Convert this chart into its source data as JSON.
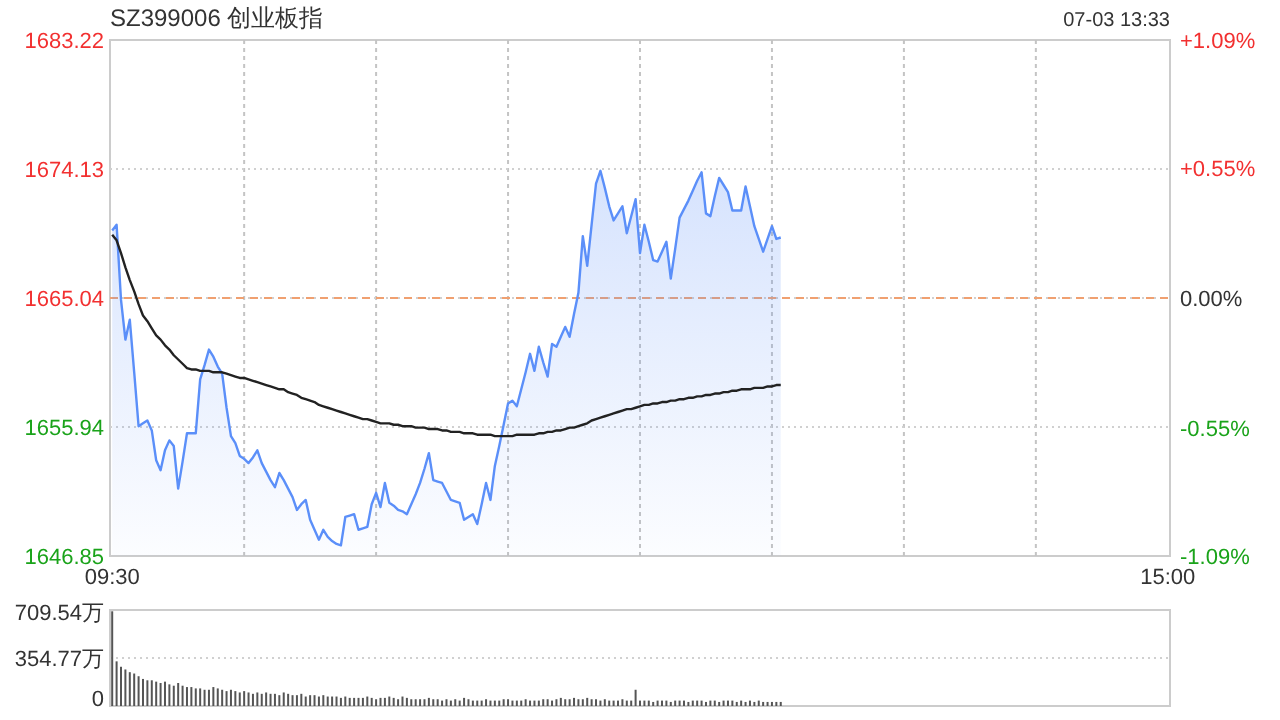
{
  "chart_data": [
    {
      "type": "line",
      "title": "SZ399006 创业板指",
      "annotations": [
        "07-03 13:33"
      ],
      "categories": [
        "09:30",
        null,
        null,
        null,
        null,
        null,
        null,
        null,
        null,
        null,
        null,
        null,
        null,
        null,
        null,
        null,
        null,
        null,
        null,
        null,
        null,
        null,
        null,
        null,
        null,
        null,
        null,
        null,
        null,
        null,
        null,
        null,
        null,
        null,
        null,
        null,
        null,
        null,
        null,
        null,
        null,
        null,
        null,
        null,
        null,
        null,
        null,
        null,
        null,
        null,
        null,
        null,
        null,
        null,
        null,
        null,
        null,
        null,
        null,
        null,
        null,
        null,
        null,
        null,
        null,
        null,
        null,
        null,
        null,
        null,
        null,
        null,
        null,
        null,
        null,
        null,
        null,
        null,
        null,
        null,
        null,
        null,
        null,
        null,
        null,
        null,
        null,
        null,
        null,
        null,
        null,
        null,
        null,
        null,
        null,
        null,
        null,
        null,
        null,
        null,
        null,
        null,
        null,
        null,
        null,
        null,
        null,
        null,
        null,
        null,
        null,
        null,
        null,
        null,
        null,
        null,
        null,
        null,
        null,
        null,
        null,
        null,
        null,
        null,
        null,
        null,
        null,
        null,
        null,
        null,
        null,
        null,
        null,
        null,
        null,
        null,
        null,
        null,
        null,
        null,
        null,
        null,
        null,
        null,
        null,
        null,
        null,
        null,
        null,
        null,
        null,
        null,
        null,
        null,
        null,
        null,
        null,
        null,
        null,
        null,
        null,
        null,
        null,
        null,
        null,
        null,
        null,
        null,
        null,
        null,
        null,
        null,
        null,
        null,
        null,
        null,
        null,
        null,
        null,
        null,
        null,
        null,
        null,
        null,
        null,
        null,
        null,
        null,
        null,
        null,
        null,
        null,
        null,
        null,
        null,
        null,
        null,
        null,
        null,
        null,
        null,
        null,
        null,
        null,
        null,
        null,
        null,
        null,
        null,
        null,
        null,
        null,
        null,
        null,
        null,
        null,
        null,
        null,
        null,
        null,
        null,
        null,
        null,
        null,
        null,
        null,
        null,
        null,
        null,
        null,
        null,
        null,
        null,
        null,
        null,
        null,
        null,
        null,
        null,
        null,
        "15:00"
      ],
      "ylim": [
        1646.85,
        1683.22
      ],
      "yticks": [
        1646.85,
        1655.94,
        1665.04,
        1674.13,
        1683.22
      ],
      "y2lim": [
        -1.09,
        1.09
      ],
      "y2ticks": [
        {
          "value": -1.09,
          "label": "-1.09%"
        },
        {
          "value": -0.55,
          "label": "-0.55%"
        },
        {
          "value": 0,
          "label": "0.00%"
        },
        {
          "value": 0.55,
          "label": "+0.55%"
        },
        {
          "value": 1.09,
          "label": "+1.09%"
        }
      ],
      "grid": true,
      "marker": "none",
      "line_style": "solid",
      "ref_lines": [
        {
          "axis": "y",
          "value": 1665.04,
          "label": null,
          "color": "#f0a070",
          "line_style": "dashed"
        }
      ],
      "series": [
        {
          "type": "area",
          "color": "#5b8ff9",
          "values": [
            1669.8,
            1670.2,
            1664.9,
            1662.1,
            1663.5,
            1659.8,
            1656.0,
            1656.2,
            1656.4,
            1655.7,
            1653.6,
            1652.9,
            1654.3,
            1655.0,
            1654.6,
            1651.6,
            1653.5,
            1655.5,
            1655.5,
            1655.5,
            1659.3,
            1660.3,
            1661.4,
            1660.9,
            1660.2,
            1659.7,
            1657.3,
            1655.3,
            1654.8,
            1653.9,
            1653.7,
            1653.4,
            1653.8,
            1654.3,
            1653.4,
            1652.8,
            1652.2,
            1651.7,
            1652.7,
            1652.2,
            1651.6,
            1651.0,
            1650.1,
            1650.5,
            1650.8,
            1649.4,
            1648.7,
            1648.0,
            1648.7,
            1648.2,
            1647.9,
            1647.7,
            1647.6,
            1649.6,
            1649.7,
            1649.8,
            1648.7,
            1648.8,
            1648.9,
            1650.5,
            1651.3,
            1650.3,
            1652.0,
            1650.6,
            1650.4,
            1650.1,
            1650.0,
            1649.8,
            1650.5,
            1651.2,
            1652.0,
            1653.0,
            1654.1,
            1652.2,
            1652.1,
            1652.0,
            1651.4,
            1650.8,
            1650.7,
            1650.6,
            1649.4,
            1649.6,
            1649.8,
            1649.1,
            1650.5,
            1652.0,
            1650.8,
            1653.2,
            1654.6,
            1656.1,
            1657.6,
            1657.8,
            1657.4,
            1658.6,
            1659.8,
            1661.1,
            1659.9,
            1661.6,
            1660.5,
            1659.5,
            1661.8,
            1661.6,
            1662.3,
            1663.0,
            1662.3,
            1663.9,
            1665.4,
            1669.4,
            1667.3,
            1670.2,
            1673.1,
            1674.0,
            1672.8,
            1671.5,
            1670.5,
            1671.0,
            1671.5,
            1669.6,
            1670.8,
            1672.0,
            1668.2,
            1670.2,
            1669.0,
            1667.7,
            1667.6,
            1668.3,
            1669.0,
            1666.4,
            1668.5,
            1670.7,
            1671.3,
            1671.9,
            1672.6,
            1673.3,
            1673.9,
            1671.0,
            1670.8,
            1672.2,
            1673.5,
            1673.0,
            1672.5,
            1671.2,
            1671.2,
            1671.2,
            1672.9,
            1671.5,
            1670.1,
            1669.2,
            1668.3,
            1669.2,
            1670.1,
            1669.2,
            1669.3,
            null,
            null,
            null,
            null,
            null,
            null,
            null,
            null,
            null,
            null,
            null,
            null,
            null,
            null,
            null,
            null,
            null,
            null,
            null,
            null,
            null,
            null,
            null,
            null,
            null,
            null,
            null,
            null,
            null,
            null,
            null,
            null,
            null,
            null,
            null,
            null,
            null,
            null,
            null,
            null,
            null,
            null,
            null,
            null,
            null,
            null,
            null,
            null,
            null,
            null,
            null,
            null,
            null,
            null,
            null,
            null,
            null,
            null,
            null,
            null,
            null,
            null,
            null,
            null,
            null,
            null,
            null,
            null,
            null,
            null,
            null,
            null,
            null,
            null,
            null,
            null,
            null,
            null,
            null,
            null,
            null,
            null,
            null,
            null,
            null,
            null,
            null,
            null
          ]
        },
        {
          "type": "line",
          "color": "#222222",
          "values": [
            1669.5,
            1669.1,
            1668.2,
            1667.2,
            1666.3,
            1665.5,
            1664.6,
            1663.8,
            1663.4,
            1662.9,
            1662.4,
            1662.1,
            1661.7,
            1661.4,
            1661.0,
            1660.7,
            1660.4,
            1660.1,
            1660.0,
            1660.0,
            1659.9,
            1659.9,
            1659.9,
            1659.8,
            1659.8,
            1659.8,
            1659.7,
            1659.6,
            1659.5,
            1659.4,
            1659.4,
            1659.3,
            1659.2,
            1659.1,
            1659.0,
            1658.9,
            1658.8,
            1658.7,
            1658.6,
            1658.6,
            1658.4,
            1658.3,
            1658.2,
            1658.0,
            1657.9,
            1657.8,
            1657.7,
            1657.5,
            1657.4,
            1657.3,
            1657.2,
            1657.1,
            1657.0,
            1656.9,
            1656.8,
            1656.7,
            1656.6,
            1656.5,
            1656.5,
            1656.4,
            1656.3,
            1656.2,
            1656.2,
            1656.2,
            1656.1,
            1656.1,
            1656.0,
            1656.0,
            1656.0,
            1655.9,
            1655.9,
            1655.9,
            1655.8,
            1655.8,
            1655.8,
            1655.7,
            1655.7,
            1655.6,
            1655.6,
            1655.6,
            1655.5,
            1655.5,
            1655.5,
            1655.4,
            1655.4,
            1655.4,
            1655.4,
            1655.3,
            1655.3,
            1655.3,
            1655.3,
            1655.3,
            1655.4,
            1655.4,
            1655.4,
            1655.4,
            1655.4,
            1655.5,
            1655.5,
            1655.6,
            1655.6,
            1655.7,
            1655.7,
            1655.8,
            1655.9,
            1655.9,
            1656.0,
            1656.1,
            1656.2,
            1656.4,
            1656.5,
            1656.6,
            1656.7,
            1656.8,
            1656.9,
            1657.0,
            1657.1,
            1657.2,
            1657.2,
            1657.3,
            1657.4,
            1657.5,
            1657.5,
            1657.6,
            1657.6,
            1657.7,
            1657.7,
            1657.8,
            1657.8,
            1657.9,
            1657.9,
            1658.0,
            1658.0,
            1658.1,
            1658.1,
            1658.2,
            1658.2,
            1658.3,
            1658.3,
            1658.4,
            1658.4,
            1658.5,
            1658.5,
            1658.6,
            1658.6,
            1658.6,
            1658.7,
            1658.7,
            1658.7,
            1658.8,
            1658.8,
            1658.9,
            1658.9,
            null,
            null,
            null,
            null,
            null,
            null,
            null,
            null,
            null,
            null,
            null,
            null,
            null,
            null,
            null,
            null,
            null,
            null,
            null,
            null,
            null,
            null,
            null,
            null,
            null,
            null,
            null,
            null,
            null,
            null,
            null,
            null,
            null,
            null,
            null,
            null,
            null,
            null,
            null,
            null,
            null,
            null,
            null,
            null,
            null,
            null,
            null,
            null,
            null,
            null,
            null,
            null,
            null,
            null,
            null,
            null,
            null,
            null,
            null,
            null,
            null,
            null,
            null,
            null,
            null,
            null,
            null,
            null,
            null,
            null,
            null,
            null,
            null,
            null,
            null,
            null,
            null,
            null,
            null,
            null,
            null,
            null,
            null,
            null,
            null,
            null,
            null,
            null
          ]
        }
      ]
    },
    {
      "type": "bar",
      "color": "#555555",
      "ylim": [
        0,
        709.54
      ],
      "yticks": [
        0,
        {
          "value": 354.77,
          "label": "354.77万"
        },
        {
          "value": 709.54,
          "label": "709.54万"
        }
      ],
      "grid": "y",
      "tick_labels": "y",
      "categories": [
        null,
        null,
        null,
        null,
        null,
        null,
        null,
        null,
        null,
        null,
        null,
        null,
        null,
        null,
        null,
        null,
        null,
        null,
        null,
        null,
        null,
        null,
        null,
        null,
        null,
        null,
        null,
        null,
        null,
        null,
        null,
        null,
        null,
        null,
        null,
        null,
        null,
        null,
        null,
        null,
        null,
        null,
        null,
        null,
        null,
        null,
        null,
        null,
        null,
        null,
        null,
        null,
        null,
        null,
        null,
        null,
        null,
        null,
        null,
        null,
        null,
        null,
        null,
        null,
        null,
        null,
        null,
        null,
        null,
        null,
        null,
        null,
        null,
        null,
        null,
        null,
        null,
        null,
        null,
        null,
        null,
        null,
        null,
        null,
        null,
        null,
        null,
        null,
        null,
        null,
        null,
        null,
        null,
        null,
        null,
        null,
        null,
        null,
        null,
        null,
        null,
        null,
        null,
        null,
        null,
        null,
        null,
        null,
        null,
        null,
        null,
        null,
        null,
        null,
        null,
        null,
        null,
        null,
        null,
        null,
        null,
        null,
        null,
        null,
        null,
        null,
        null,
        null,
        null,
        null,
        null,
        null,
        null,
        null,
        null,
        null,
        null,
        null,
        null,
        null,
        null,
        null,
        null,
        null,
        null,
        null,
        null,
        null,
        null,
        null,
        null,
        null,
        null,
        null,
        null,
        null,
        null,
        null,
        null,
        null,
        null,
        null,
        null,
        null,
        null,
        null,
        null,
        null,
        null,
        null,
        null,
        null,
        null,
        null,
        null,
        null,
        null,
        null,
        null,
        null,
        null,
        null,
        null,
        null,
        null,
        null,
        null,
        null,
        null,
        null,
        null,
        null,
        null,
        null,
        null,
        null,
        null,
        null,
        null,
        null,
        null,
        null,
        null,
        null,
        null,
        null,
        null,
        null,
        null,
        null,
        null,
        null,
        null,
        null,
        null,
        null,
        null,
        null,
        null,
        null,
        null,
        null,
        null,
        null,
        null,
        null,
        null,
        null,
        null,
        null,
        null,
        null,
        null,
        null,
        null,
        null,
        null,
        null,
        null,
        null,
        null
      ],
      "values": [
        700,
        330,
        290,
        270,
        250,
        240,
        220,
        200,
        190,
        190,
        180,
        170,
        180,
        160,
        150,
        170,
        150,
        140,
        140,
        130,
        130,
        120,
        120,
        140,
        130,
        120,
        110,
        120,
        110,
        100,
        110,
        100,
        90,
        100,
        90,
        100,
        90,
        90,
        80,
        100,
        90,
        80,
        80,
        90,
        70,
        80,
        80,
        70,
        80,
        70,
        70,
        70,
        60,
        70,
        60,
        60,
        60,
        60,
        70,
        60,
        50,
        60,
        60,
        70,
        60,
        50,
        70,
        60,
        50,
        50,
        50,
        50,
        60,
        50,
        50,
        40,
        50,
        40,
        50,
        40,
        60,
        50,
        40,
        40,
        40,
        50,
        40,
        40,
        40,
        50,
        50,
        40,
        40,
        40,
        50,
        40,
        40,
        40,
        50,
        50,
        40,
        50,
        60,
        50,
        50,
        60,
        50,
        50,
        60,
        50,
        50,
        40,
        50,
        40,
        40,
        40,
        50,
        40,
        40,
        120,
        40,
        40,
        40,
        30,
        40,
        40,
        40,
        30,
        40,
        40,
        40,
        30,
        40,
        40,
        40,
        30,
        40,
        40,
        30,
        40,
        40,
        40,
        30,
        40,
        30,
        40,
        30,
        40,
        30,
        30,
        30,
        30,
        30,
        null,
        null,
        null,
        null,
        null,
        null,
        null,
        null,
        null,
        null,
        null,
        null,
        null,
        null,
        null,
        null,
        null,
        null,
        null,
        null,
        null,
        null,
        null,
        null,
        null,
        null,
        null,
        null,
        null,
        null,
        null,
        null,
        null,
        null,
        null,
        null,
        null,
        null,
        null,
        null,
        null,
        null,
        null,
        null,
        null,
        null,
        null,
        null,
        null,
        null,
        null,
        null,
        null,
        null,
        null,
        null,
        null,
        null,
        null,
        null,
        null,
        null,
        null,
        null,
        null,
        null,
        null,
        null,
        null,
        null,
        null,
        null,
        null,
        null,
        null,
        null,
        null,
        null,
        null,
        null,
        null,
        null,
        null,
        null,
        null,
        null,
        null,
        null
      ]
    }
  ]
}
